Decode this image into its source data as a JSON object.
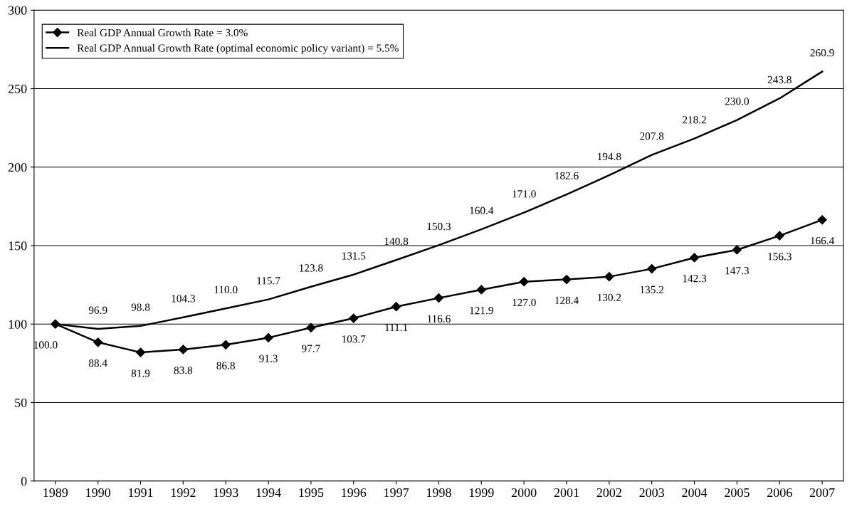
{
  "chart_data": {
    "type": "line",
    "categories": [
      "1989",
      "1990",
      "1991",
      "1992",
      "1993",
      "1994",
      "1995",
      "1996",
      "1997",
      "1998",
      "1999",
      "2000",
      "2001",
      "2002",
      "2003",
      "2004",
      "2005",
      "2006",
      "2007"
    ],
    "series": [
      {
        "name": "Real GDP Annual Growth Rate = 3.0%",
        "color": "#000000",
        "marker": "diamond",
        "values": [
          100.0,
          88.4,
          81.9,
          83.8,
          86.8,
          91.3,
          97.7,
          103.7,
          111.1,
          116.6,
          121.9,
          127.0,
          128.4,
          130.2,
          135.2,
          142.3,
          147.3,
          156.3,
          166.4
        ],
        "value_labels": [
          "100.0",
          "88.4",
          "81.9",
          "83.8",
          "86.8",
          "91.3",
          "97.7",
          "103.7",
          "111.1",
          "116.6",
          "121.9",
          "127.0",
          "128.4",
          "130.2",
          "135.2",
          "142.3",
          "147.3",
          "156.3",
          "166.4"
        ]
      },
      {
        "name": "Real GDP Annual Growth Rate (optimal economic policy variant) = 5.5%",
        "color": "#000000",
        "marker": "none",
        "values": [
          100.0,
          96.9,
          98.8,
          104.3,
          110.0,
          115.7,
          123.8,
          131.5,
          140.8,
          150.3,
          160.4,
          171.0,
          182.6,
          194.8,
          207.8,
          218.2,
          230.0,
          243.8,
          260.9
        ],
        "value_labels": [
          null,
          "96.9",
          "98.8",
          "104.3",
          "110.0",
          "115.7",
          "123.8",
          "131.5",
          "140.8",
          "150.3",
          "160.4",
          "171.0",
          "182.6",
          "194.8",
          "207.8",
          "218.2",
          "230.0",
          "243.8",
          "260.9"
        ]
      }
    ],
    "ylim": [
      0,
      300
    ],
    "yticks": [
      0,
      50,
      100,
      150,
      200,
      250,
      300
    ],
    "grid": "y",
    "legend": "top left",
    "line_style": "solid"
  }
}
